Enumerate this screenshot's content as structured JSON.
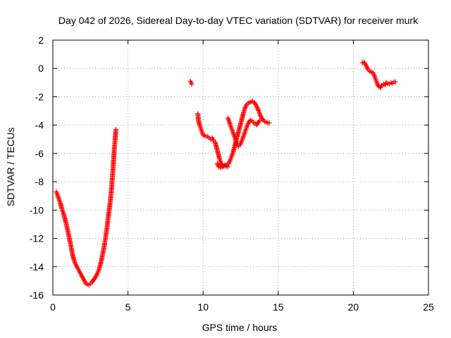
{
  "chart_data": {
    "type": "scatter",
    "title": "Day 042 of 2026, Sidereal Day-to-day VTEC variation (SDTVAR) for receiver murk",
    "xlabel": "GPS time / hours",
    "ylabel": "SDTVAR / TECUs",
    "xlim": [
      0,
      25
    ],
    "ylim": [
      -16,
      2
    ],
    "xticks": [
      0,
      5,
      10,
      15,
      20,
      25
    ],
    "yticks": [
      -16,
      -14,
      -12,
      -10,
      -8,
      -6,
      -4,
      -2,
      0,
      2
    ],
    "xtick_labels": [
      "0",
      "5",
      "10",
      "15",
      "20",
      "25"
    ],
    "ytick_labels": [
      "-16",
      "-14",
      "-12",
      "-10",
      "-8",
      "-6",
      "-4",
      "-2",
      "0",
      "2"
    ],
    "grid": true,
    "marker": "plus",
    "color": "#ff0000",
    "series": [
      {
        "name": "SDTVAR",
        "segments": [
          [
            [
              0.22,
              -8.7
            ],
            [
              0.3,
              -8.9
            ],
            [
              0.4,
              -9.2
            ],
            [
              0.5,
              -9.5
            ],
            [
              0.6,
              -9.9
            ],
            [
              0.7,
              -10.2
            ],
            [
              0.8,
              -10.6
            ],
            [
              0.9,
              -11.0
            ],
            [
              1.0,
              -11.5
            ],
            [
              1.1,
              -12.0
            ],
            [
              1.2,
              -12.5
            ],
            [
              1.3,
              -13.1
            ],
            [
              1.4,
              -13.5
            ],
            [
              1.5,
              -13.8
            ],
            [
              1.6,
              -14.0
            ],
            [
              1.7,
              -14.2
            ],
            [
              1.8,
              -14.4
            ],
            [
              1.9,
              -14.6
            ],
            [
              2.0,
              -14.8
            ],
            [
              2.1,
              -15.0
            ],
            [
              2.2,
              -15.2
            ],
            [
              2.3,
              -15.25
            ],
            [
              2.4,
              -15.3
            ],
            [
              2.5,
              -15.2
            ],
            [
              2.6,
              -15.1
            ],
            [
              2.7,
              -14.95
            ],
            [
              2.8,
              -14.8
            ],
            [
              2.9,
              -14.6
            ],
            [
              3.0,
              -14.4
            ],
            [
              3.1,
              -14.1
            ],
            [
              3.2,
              -13.7
            ],
            [
              3.3,
              -13.2
            ],
            [
              3.4,
              -12.7
            ],
            [
              3.5,
              -12.0
            ],
            [
              3.6,
              -11.3
            ],
            [
              3.7,
              -10.4
            ],
            [
              3.8,
              -9.6
            ],
            [
              3.9,
              -8.6
            ],
            [
              4.0,
              -7.2
            ],
            [
              4.1,
              -5.6
            ],
            [
              4.2,
              -4.3
            ]
          ],
          [
            [
              9.15,
              -0.9
            ],
            [
              9.2,
              -1.0
            ],
            [
              9.25,
              -1.1
            ]
          ],
          [
            [
              9.65,
              -3.2
            ],
            [
              9.7,
              -3.7
            ],
            [
              9.8,
              -4.1
            ],
            [
              9.9,
              -4.4
            ],
            [
              10.0,
              -4.7
            ],
            [
              10.1,
              -4.75
            ],
            [
              10.2,
              -4.8
            ],
            [
              10.3,
              -4.8
            ],
            [
              10.4,
              -4.9
            ],
            [
              10.5,
              -5.0
            ],
            [
              10.6,
              -4.9
            ],
            [
              10.7,
              -5.1
            ],
            [
              10.8,
              -5.2
            ],
            [
              10.9,
              -5.6
            ],
            [
              11.0,
              -6.0
            ],
            [
              11.1,
              -6.4
            ],
            [
              11.2,
              -6.7
            ],
            [
              11.3,
              -6.9
            ],
            [
              11.4,
              -6.9
            ],
            [
              11.5,
              -6.85
            ],
            [
              11.6,
              -6.8
            ],
            [
              11.7,
              -6.7
            ],
            [
              11.8,
              -6.5
            ],
            [
              11.9,
              -6.2
            ],
            [
              12.0,
              -5.9
            ],
            [
              12.1,
              -5.5
            ],
            [
              12.2,
              -5.1
            ],
            [
              12.3,
              -4.7
            ],
            [
              12.4,
              -4.3
            ],
            [
              12.5,
              -3.9
            ],
            [
              12.6,
              -3.5
            ],
            [
              12.7,
              -3.1
            ],
            [
              12.8,
              -2.75
            ],
            [
              12.9,
              -2.55
            ],
            [
              13.0,
              -2.45
            ],
            [
              13.1,
              -2.4
            ],
            [
              13.2,
              -2.35
            ],
            [
              13.3,
              -2.3
            ],
            [
              13.4,
              -2.4
            ],
            [
              13.5,
              -2.55
            ],
            [
              13.6,
              -2.75
            ],
            [
              13.7,
              -3.0
            ],
            [
              13.8,
              -3.3
            ],
            [
              13.9,
              -3.5
            ],
            [
              14.0,
              -3.65
            ],
            [
              14.1,
              -3.75
            ],
            [
              14.2,
              -3.8
            ],
            [
              14.3,
              -3.85
            ],
            [
              14.4,
              -3.85
            ]
          ],
          [
            [
              11.65,
              -3.5
            ],
            [
              11.75,
              -3.8
            ],
            [
              11.85,
              -4.1
            ],
            [
              11.95,
              -4.4
            ],
            [
              12.05,
              -4.7
            ],
            [
              12.15,
              -5.0
            ],
            [
              12.25,
              -5.3
            ],
            [
              12.35,
              -5.5
            ],
            [
              12.45,
              -5.4
            ],
            [
              12.55,
              -5.2
            ],
            [
              12.65,
              -4.9
            ],
            [
              12.75,
              -4.6
            ],
            [
              12.85,
              -4.3
            ],
            [
              12.95,
              -4.0
            ],
            [
              13.05,
              -3.8
            ],
            [
              13.15,
              -3.65
            ],
            [
              13.25,
              -3.7
            ],
            [
              13.35,
              -3.8
            ],
            [
              13.45,
              -3.9
            ],
            [
              13.55,
              -4.0
            ],
            [
              13.65,
              -3.85
            ],
            [
              13.75,
              -3.7
            ]
          ],
          [
            [
              10.95,
              -6.7
            ],
            [
              11.05,
              -6.95
            ],
            [
              11.15,
              -7.0
            ],
            [
              11.25,
              -6.95
            ],
            [
              11.35,
              -6.9
            ],
            [
              11.45,
              -6.8
            ],
            [
              11.55,
              -6.9
            ],
            [
              11.65,
              -6.95
            ]
          ],
          [
            [
              20.6,
              0.4
            ],
            [
              20.7,
              0.45
            ],
            [
              20.8,
              0.3
            ],
            [
              20.9,
              0.1
            ],
            [
              21.0,
              -0.1
            ],
            [
              21.1,
              -0.2
            ],
            [
              21.2,
              -0.25
            ],
            [
              21.3,
              -0.3
            ],
            [
              21.4,
              -0.5
            ],
            [
              21.5,
              -0.8
            ],
            [
              21.6,
              -1.1
            ],
            [
              21.7,
              -1.3
            ],
            [
              21.8,
              -1.35
            ],
            [
              21.9,
              -1.2
            ],
            [
              22.0,
              -1.1
            ],
            [
              22.1,
              -1.15
            ],
            [
              22.2,
              -1.0
            ],
            [
              22.3,
              -1.05
            ],
            [
              22.4,
              -1.1
            ],
            [
              22.5,
              -1.0
            ],
            [
              22.6,
              -1.05
            ],
            [
              22.7,
              -0.95
            ],
            [
              22.8,
              -0.95
            ]
          ]
        ]
      }
    ]
  }
}
